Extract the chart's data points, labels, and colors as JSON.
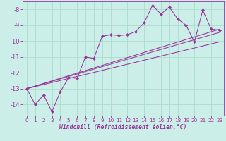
{
  "bg_color": "#cceee8",
  "grid_color": "#aaddcc",
  "line_color": "#993399",
  "marker_color": "#993399",
  "xlabel": "Windchill (Refroidissement éolien,°C)",
  "xlim": [
    -0.5,
    23.5
  ],
  "ylim": [
    -14.7,
    -7.5
  ],
  "yticks": [
    -8,
    -9,
    -10,
    -11,
    -12,
    -13,
    -14
  ],
  "xticks": [
    0,
    1,
    2,
    3,
    4,
    5,
    6,
    7,
    8,
    9,
    10,
    11,
    12,
    13,
    14,
    15,
    16,
    17,
    18,
    19,
    20,
    21,
    22,
    23
  ],
  "series1_x": [
    0,
    1,
    2,
    3,
    4,
    5,
    6,
    7,
    8,
    9,
    10,
    11,
    12,
    13,
    14,
    15,
    16,
    17,
    18,
    19,
    20,
    21,
    22,
    23
  ],
  "series1_y": [
    -13.0,
    -14.0,
    -13.4,
    -14.45,
    -13.2,
    -12.3,
    -12.35,
    -11.0,
    -11.1,
    -9.7,
    -9.6,
    -9.65,
    -9.6,
    -9.4,
    -8.85,
    -7.75,
    -8.3,
    -7.85,
    -8.6,
    -9.0,
    -10.05,
    -8.05,
    -9.25,
    -9.3
  ],
  "line1_x": [
    0,
    23
  ],
  "line1_y": [
    -13.0,
    -9.25
  ],
  "line2_x": [
    0,
    23
  ],
  "line2_y": [
    -13.0,
    -9.45
  ],
  "line3_x": [
    0,
    23
  ],
  "line3_y": [
    -13.0,
    -10.05
  ]
}
